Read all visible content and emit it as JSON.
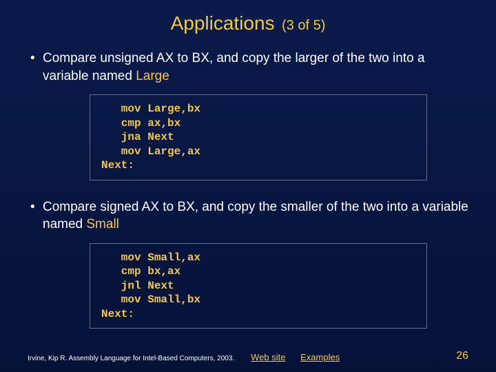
{
  "title": {
    "main": "Applications",
    "sub": "(3 of 5)"
  },
  "bullets": [
    {
      "pre": "Compare unsigned AX to BX, and copy the larger of the two into a variable named ",
      "hl": "Large"
    },
    {
      "pre": "Compare signed AX to BX, and copy the smaller of the two into a variable named ",
      "hl": "Small"
    }
  ],
  "code1": "   mov Large,bx\n   cmp ax,bx\n   jna Next\n   mov Large,ax\nNext:",
  "code2": "   mov Small,ax\n   cmp bx,ax\n   jnl Next\n   mov Small,bx\nNext:",
  "footer": {
    "citation": "Irvine, Kip R. Assembly Language for Intel-Based Computers, 2003.",
    "link1": "Web site",
    "link2": "Examples",
    "page": "26"
  },
  "colors": {
    "accent": "#f5c84a",
    "text": "#ffffff",
    "bg_top": "#0a1a4a",
    "bg_bottom": "#051238",
    "box_border": "#6a6a8a"
  }
}
